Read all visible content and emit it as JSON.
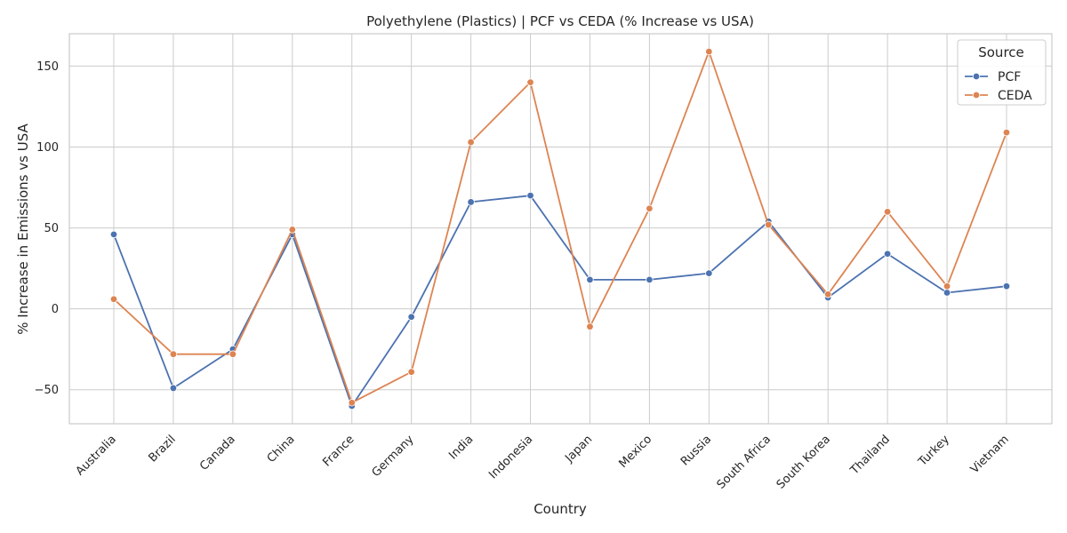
{
  "chart_data": {
    "type": "line",
    "title": "Polyethylene (Plastics) | PCF vs CEDA (% Increase vs USA)",
    "xlabel": "Country",
    "ylabel": "% Increase in Emissions vs USA",
    "categories": [
      "Australia",
      "Brazil",
      "Canada",
      "China",
      "France",
      "Germany",
      "India",
      "Indonesia",
      "Japan",
      "Mexico",
      "Russia",
      "South Africa",
      "South Korea",
      "Thailand",
      "Turkey",
      "Vietnam"
    ],
    "ylim": [
      -71,
      170
    ],
    "yticks": [
      -50,
      0,
      50,
      100,
      150
    ],
    "ytick_labels": [
      "−50",
      "0",
      "50",
      "100",
      "150"
    ],
    "grid": true,
    "legend": {
      "title": "Source",
      "placement": "top-right"
    },
    "series": [
      {
        "name": "PCF",
        "color": "#4c72b0",
        "values": [
          46,
          -49,
          -25,
          46,
          -60,
          -5,
          66,
          70,
          18,
          18,
          22,
          54,
          7,
          34,
          10,
          14
        ]
      },
      {
        "name": "CEDA",
        "color": "#dd8452",
        "values": [
          6,
          -28,
          -28,
          49,
          -58,
          -39,
          103,
          140,
          -11,
          62,
          159,
          52,
          9,
          60,
          14,
          109
        ]
      }
    ]
  }
}
